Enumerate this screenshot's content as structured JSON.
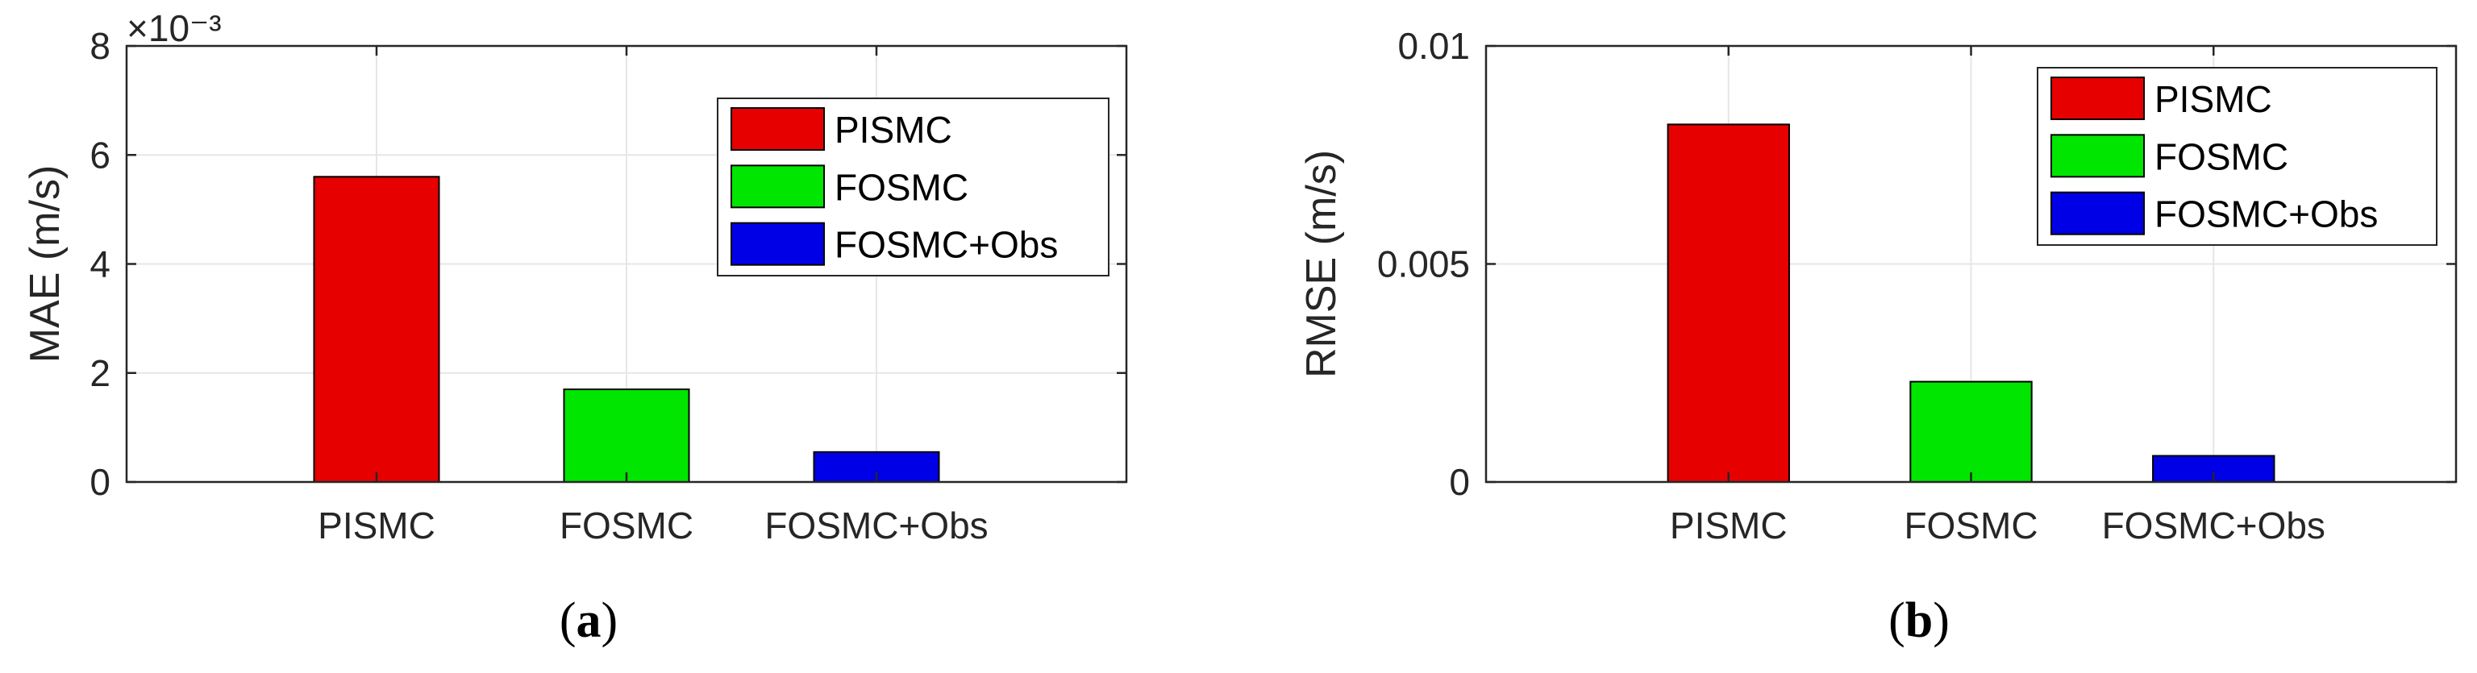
{
  "chart_data": [
    {
      "type": "bar",
      "panel_label": {
        "open": "(",
        "letter": "a",
        "close": ")"
      },
      "categories": [
        "PISMC",
        "FOSMC",
        "FOSMC+Obs"
      ],
      "ylabel": "MAE (m/s)",
      "ylim": [
        0,
        8
      ],
      "yticks": [
        0,
        2,
        4,
        6,
        8
      ],
      "ytick_labels": [
        "0",
        "2",
        "4",
        "6",
        "8"
      ],
      "exponent_label": "×10⁻³",
      "x_slots": 4,
      "series": [
        {
          "name": "PISMC",
          "category": "PISMC",
          "value": 5.6,
          "color": "#e60000"
        },
        {
          "name": "FOSMC",
          "category": "FOSMC",
          "value": 1.7,
          "color": "#00e600"
        },
        {
          "name": "FOSMC+Obs",
          "category": "FOSMC+Obs",
          "value": 0.55,
          "color": "#0000e6"
        }
      ],
      "grid": true,
      "legend_position": "top-right"
    },
    {
      "type": "bar",
      "panel_label": {
        "open": "(",
        "letter": "b",
        "close": ")"
      },
      "categories": [
        "PISMC",
        "FOSMC",
        "FOSMC+Obs"
      ],
      "ylabel": "RMSE (m/s)",
      "ylim": [
        0,
        0.01
      ],
      "yticks": [
        0,
        0.005,
        0.01
      ],
      "ytick_labels": [
        "0",
        "0.005",
        "0.01"
      ],
      "exponent_label": "",
      "x_slots": 4,
      "series": [
        {
          "name": "PISMC",
          "category": "PISMC",
          "value": 0.0082,
          "color": "#e60000"
        },
        {
          "name": "FOSMC",
          "category": "FOSMC",
          "value": 0.0023,
          "color": "#00e600"
        },
        {
          "name": "FOSMC+Obs",
          "category": "FOSMC+Obs",
          "value": 0.0006,
          "color": "#0000e6"
        }
      ],
      "grid": true,
      "legend_position": "top-right"
    }
  ]
}
